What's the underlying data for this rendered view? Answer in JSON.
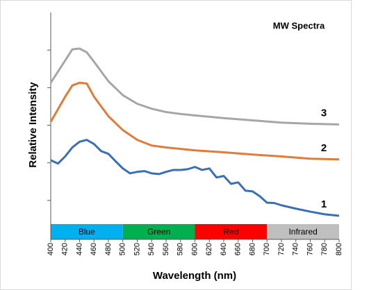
{
  "chart_data": {
    "type": "line",
    "title": "MW Spectra",
    "x_label": "Wavelength (nm)",
    "y_label": "Relative Intensity",
    "xlim": [
      400,
      800
    ],
    "xticks": [
      400,
      420,
      440,
      460,
      480,
      500,
      520,
      540,
      560,
      580,
      600,
      620,
      640,
      660,
      680,
      700,
      720,
      740,
      760,
      780,
      800
    ],
    "ylim": [
      0,
      6
    ],
    "yticks": [
      1,
      2,
      3,
      4,
      5
    ],
    "bands": [
      {
        "label": "Blue",
        "start": 400,
        "end": 500,
        "color": "#00b0f0"
      },
      {
        "label": "Green",
        "start": 500,
        "end": 600,
        "color": "#00b050"
      },
      {
        "label": "Red",
        "start": 600,
        "end": 700,
        "color": "#ff0000"
      },
      {
        "label": "Infrared",
        "start": 700,
        "end": 800,
        "color": "#bfbfbf"
      }
    ],
    "series": [
      {
        "name": "3",
        "color": "#a6a6a6",
        "x": [
          400,
          420,
          430,
          440,
          450,
          460,
          480,
          500,
          520,
          540,
          560,
          580,
          600,
          640,
          680,
          720,
          760,
          800
        ],
        "values": [
          4.13,
          4.72,
          5.02,
          5.04,
          4.94,
          4.69,
          4.17,
          3.8,
          3.57,
          3.44,
          3.35,
          3.3,
          3.26,
          3.19,
          3.13,
          3.07,
          3.04,
          3.02
        ]
      },
      {
        "name": "2",
        "color": "#e07b39",
        "x": [
          400,
          420,
          430,
          440,
          450,
          460,
          480,
          500,
          520,
          540,
          560,
          580,
          600,
          640,
          680,
          720,
          760,
          800
        ],
        "values": [
          3.09,
          3.76,
          4.06,
          4.13,
          4.11,
          3.76,
          3.24,
          2.87,
          2.61,
          2.46,
          2.41,
          2.37,
          2.33,
          2.28,
          2.22,
          2.17,
          2.11,
          2.09
        ]
      },
      {
        "name": "1",
        "color": "#3a6fb6",
        "x": [
          400,
          410,
          420,
          430,
          440,
          450,
          460,
          470,
          480,
          490,
          500,
          510,
          520,
          530,
          540,
          550,
          560,
          570,
          580,
          590,
          600,
          610,
          620,
          630,
          640,
          650,
          660,
          670,
          680,
          690,
          700,
          710,
          720,
          740,
          760,
          780,
          800
        ],
        "values": [
          2.07,
          1.98,
          2.17,
          2.41,
          2.56,
          2.61,
          2.5,
          2.31,
          2.24,
          2.04,
          1.85,
          1.72,
          1.76,
          1.78,
          1.72,
          1.7,
          1.76,
          1.81,
          1.81,
          1.83,
          1.89,
          1.81,
          1.85,
          1.61,
          1.65,
          1.44,
          1.48,
          1.26,
          1.24,
          1.11,
          0.94,
          0.93,
          0.87,
          0.78,
          0.7,
          0.63,
          0.59
        ]
      }
    ]
  }
}
